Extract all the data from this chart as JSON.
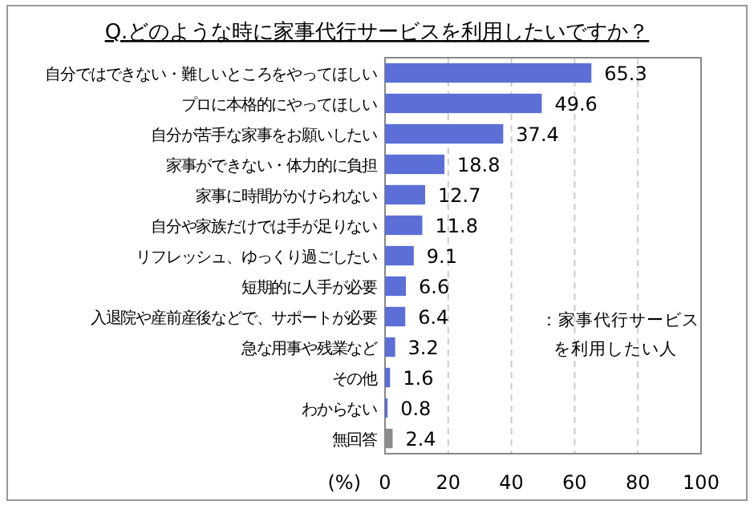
{
  "chart_data": {
    "type": "bar",
    "orientation": "horizontal",
    "title": "Q.どのような時に家事代行サービスを利用したいですか？",
    "xlabel": "(%)",
    "categories": [
      "自分ではできない・難しいところをやってほしい",
      "プロに本格的にやってほしい",
      "自分が苦手な家事をお願いしたい",
      "家事ができない・体力的に負担",
      "家事に時間がかけられない",
      "自分や家族だけでは手が足りない",
      "リフレッシュ、ゆっくり過ごしたい",
      "短期的に人手が必要",
      "入退院や産前産後などで、サポートが必要",
      "急な用事や残業など",
      "その他",
      "わからない",
      "無回答"
    ],
    "series": [
      {
        "values": [
          65.3,
          49.6,
          37.4,
          18.8,
          12.7,
          11.8,
          9.1,
          6.6,
          6.4,
          3.2,
          1.6,
          0.8,
          2.4
        ],
        "colors": [
          "#5b6fd6",
          "#5b6fd6",
          "#5b6fd6",
          "#5b6fd6",
          "#5b6fd6",
          "#5b6fd6",
          "#5b6fd6",
          "#5b6fd6",
          "#5b6fd6",
          "#5b6fd6",
          "#5b6fd6",
          "#5b6fd6",
          "#8c8c8c"
        ]
      }
    ],
    "annotations": [
      "：家事代行サービスを利用したい人"
    ],
    "xlim": [
      0,
      100
    ],
    "xticks": [
      0,
      20,
      40,
      60,
      80,
      100
    ],
    "grid": "x",
    "data_labels": true
  }
}
